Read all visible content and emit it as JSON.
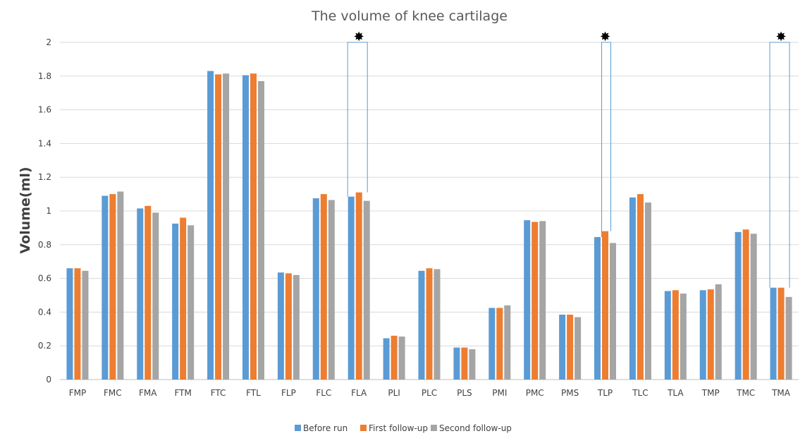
{
  "chart_data": {
    "type": "bar",
    "title": "The volume of knee cartilage",
    "xlabel": "",
    "ylabel": "Volume(ml)",
    "ylim": [
      0,
      2
    ],
    "yticks": [
      "0",
      "0.2",
      "0.4",
      "0.6",
      "0.8",
      "1",
      "1.2",
      "1.4",
      "1.6",
      "1.8",
      "2"
    ],
    "grid": true,
    "legend_position": "bottom",
    "categories": [
      "FMP",
      "FMC",
      "FMA",
      "FTM",
      "FTC",
      "FTL",
      "FLP",
      "FLC",
      "FLA",
      "PLI",
      "PLC",
      "PLS",
      "PMI",
      "PMC",
      "PMS",
      "TLP",
      "TLC",
      "TLA",
      "TMP",
      "TMC",
      "TMA"
    ],
    "series": [
      {
        "name": "Before run",
        "color": "#5B9BD5",
        "values": [
          0.66,
          1.09,
          1.015,
          0.925,
          1.83,
          1.805,
          0.635,
          1.075,
          1.085,
          0.245,
          0.645,
          0.19,
          0.425,
          0.945,
          0.385,
          0.845,
          1.08,
          0.525,
          0.53,
          0.875,
          0.545
        ]
      },
      {
        "name": "First follow-up",
        "color": "#ED7D31",
        "values": [
          0.66,
          1.1,
          1.03,
          0.96,
          1.81,
          1.815,
          0.63,
          1.1,
          1.11,
          0.26,
          0.66,
          0.19,
          0.425,
          0.935,
          0.385,
          0.88,
          1.1,
          0.53,
          0.535,
          0.89,
          0.545
        ]
      },
      {
        "name": "Second follow-up",
        "color": "#A5A5A5",
        "values": [
          0.645,
          1.115,
          0.99,
          0.915,
          1.815,
          1.77,
          0.62,
          1.065,
          1.06,
          0.255,
          0.655,
          0.18,
          0.44,
          0.94,
          0.37,
          0.81,
          1.05,
          0.51,
          0.565,
          0.865,
          0.49
        ]
      }
    ],
    "significance_markers": [
      {
        "category": "FLA",
        "symbol": "✸"
      },
      {
        "category": "TLP",
        "symbol": "✸"
      },
      {
        "category": "TMA",
        "symbol": "✸"
      }
    ],
    "highlight_box_color": "#5B9BD5",
    "gridline_color": "#D9D9D9",
    "axis_color": "#BFBFBF"
  }
}
